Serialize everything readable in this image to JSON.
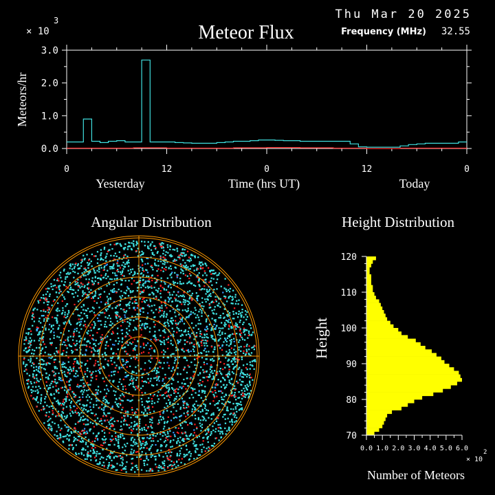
{
  "header": {
    "date": "Thu Mar 20 2025",
    "title": "Meteor Flux",
    "frequency_label": "Frequency (MHz)",
    "frequency_value": "32.55"
  },
  "chart_data": [
    {
      "type": "line",
      "title": "Meteor Flux",
      "ylabel": "Meteors/hr",
      "xlabel": "Time (hrs UT)",
      "y_multiplier": "× 10",
      "y_multiplier_exp": "3",
      "ylim": [
        0,
        3.0
      ],
      "y_ticks": [
        0.0,
        1.0,
        2.0,
        3.0
      ],
      "y_tick_labels": [
        "0.0",
        "1.0",
        "2.0",
        "3.0"
      ],
      "xlim": [
        0,
        48
      ],
      "x_ticks": [
        0,
        12,
        24,
        36,
        48
      ],
      "x_tick_labels": [
        "0",
        "12",
        "0",
        "12",
        "0"
      ],
      "day_labels": [
        "Yesterday",
        "Today"
      ],
      "series": [
        {
          "color": "#40e0e0",
          "step": true,
          "x": [
            0,
            1,
            2,
            3,
            4,
            5,
            6,
            7,
            8,
            9,
            10,
            11,
            12,
            13,
            14,
            15,
            16,
            17,
            18,
            19,
            20,
            21,
            22,
            23,
            24,
            25,
            26,
            27,
            28,
            29,
            30,
            31,
            32,
            33,
            34,
            35,
            36,
            37,
            38,
            39,
            40,
            41,
            42,
            43,
            44,
            45,
            46,
            47
          ],
          "values": [
            0.2,
            0.2,
            0.9,
            0.22,
            0.18,
            0.22,
            0.24,
            0.2,
            0.2,
            2.7,
            0.2,
            0.2,
            0.2,
            0.18,
            0.17,
            0.16,
            0.16,
            0.16,
            0.18,
            0.2,
            0.22,
            0.22,
            0.24,
            0.26,
            0.26,
            0.25,
            0.24,
            0.24,
            0.22,
            0.22,
            0.22,
            0.22,
            0.22,
            0.22,
            0.14,
            0.05,
            0.04,
            0.04,
            0.04,
            0.04,
            0.08,
            0.12,
            0.14,
            0.16,
            0.16,
            0.16,
            0.16,
            0.2
          ]
        },
        {
          "color": "#ff3030",
          "step": true,
          "x": [
            0,
            4,
            8,
            12,
            16,
            20,
            24,
            28,
            32,
            36,
            40,
            44,
            47
          ],
          "values": [
            0.01,
            0.01,
            0.02,
            0.01,
            0.01,
            0.02,
            0.03,
            0.02,
            0.01,
            0.0,
            0.01,
            0.01,
            0.01
          ]
        }
      ]
    },
    {
      "type": "scatter",
      "title": "Angular Distribution",
      "polar": true,
      "series": [
        {
          "color": "#40e0e0"
        },
        {
          "color": "#ff2020"
        },
        {
          "color": "#3399ff"
        }
      ]
    },
    {
      "type": "bar",
      "orientation": "horizontal",
      "title": "Height Distribution",
      "ylabel": "Height",
      "xlabel": "Number of Meteors",
      "x_multiplier": "× 10",
      "x_multiplier_exp": "2",
      "xlim": [
        0,
        6.0
      ],
      "x_ticks": [
        0,
        1,
        2,
        3,
        4,
        5,
        6
      ],
      "x_tick_labels": [
        "0.0",
        "1.0",
        "2.0",
        "3.0",
        "4.0",
        "5.0",
        "6.0"
      ],
      "ylim": [
        70,
        120
      ],
      "y_ticks": [
        70,
        80,
        90,
        100,
        110,
        120
      ],
      "y_tick_labels": [
        "70",
        "80",
        "90",
        "100",
        "110",
        "120"
      ],
      "color": "#ffff00",
      "heights": [
        70,
        71,
        72,
        73,
        74,
        75,
        76,
        77,
        78,
        79,
        80,
        81,
        82,
        83,
        84,
        85,
        86,
        87,
        88,
        89,
        90,
        91,
        92,
        93,
        94,
        95,
        96,
        97,
        98,
        99,
        100,
        101,
        102,
        103,
        104,
        105,
        106,
        107,
        108,
        109,
        110,
        111,
        112,
        113,
        114,
        115,
        116,
        117,
        118,
        119
      ],
      "values": [
        0.5,
        0.8,
        1.0,
        1.1,
        1.2,
        1.3,
        1.6,
        2.2,
        2.6,
        3.0,
        3.5,
        4.2,
        4.8,
        5.3,
        5.7,
        6.0,
        5.9,
        5.8,
        5.5,
        5.2,
        4.9,
        4.7,
        4.4,
        4.1,
        3.7,
        3.4,
        3.1,
        2.6,
        2.2,
        2.0,
        1.7,
        1.5,
        1.3,
        1.2,
        1.1,
        1.0,
        0.9,
        0.8,
        0.6,
        0.5,
        0.4,
        0.4,
        0.3,
        0.3,
        0.3,
        0.2,
        0.2,
        0.3,
        0.4,
        0.6
      ]
    }
  ]
}
